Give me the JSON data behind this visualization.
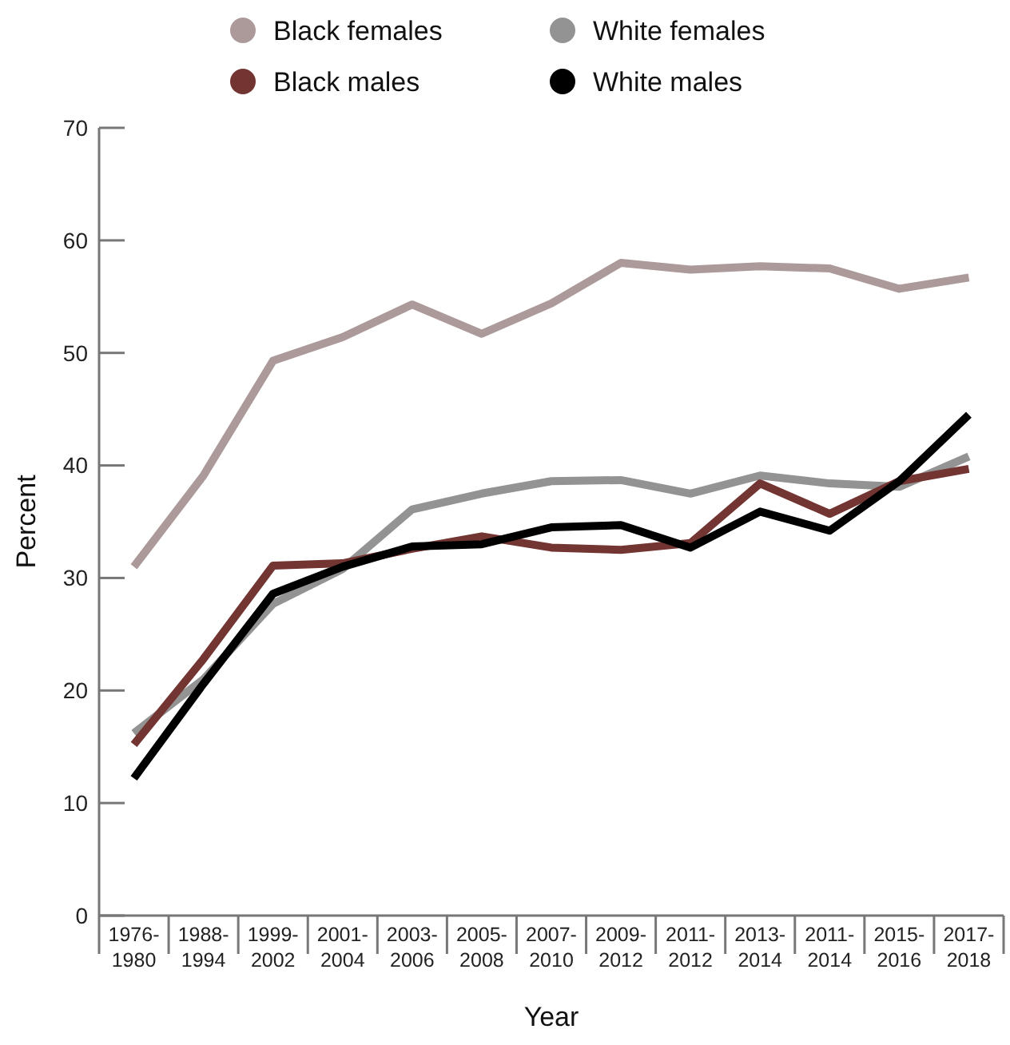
{
  "chart_data": {
    "type": "line",
    "xlabel": "Year",
    "ylabel": "Percent",
    "categories": [
      "1976-\n1980",
      "1988-\n1994",
      "1999-\n2002",
      "2001-\n2004",
      "2003-\n2006",
      "2005-\n2008",
      "2007-\n2010",
      "2009-\n2012",
      "2011-\n2012",
      "2013-\n2014",
      "2011-\n2014",
      "2015-\n2016",
      "2017-\n2018"
    ],
    "series": [
      {
        "name": "Black females",
        "color": "#ac9999",
        "values": [
          31.0,
          39.1,
          49.3,
          51.4,
          54.3,
          51.7,
          54.4,
          58.0,
          57.4,
          57.7,
          57.5,
          55.7,
          56.7
        ]
      },
      {
        "name": "White females",
        "color": "#939393",
        "values": [
          16.2,
          21.0,
          27.7,
          30.8,
          36.1,
          37.5,
          38.6,
          38.7,
          37.5,
          39.1,
          38.4,
          38.1,
          40.8
        ]
      },
      {
        "name": "Black males",
        "color": "#733532",
        "values": [
          15.2,
          22.8,
          31.1,
          31.3,
          32.6,
          33.7,
          32.7,
          32.5,
          33.1,
          38.4,
          35.7,
          38.6,
          39.7
        ]
      },
      {
        "name": "White males",
        "color": "#000000",
        "values": [
          12.2,
          20.6,
          28.6,
          31.0,
          32.8,
          33.0,
          34.5,
          34.7,
          32.7,
          35.9,
          34.2,
          38.6,
          44.5
        ]
      }
    ],
    "ylim": [
      0,
      70
    ],
    "yticks": [
      0,
      10,
      20,
      30,
      40,
      50,
      60,
      70
    ],
    "legend": "top",
    "grid": false,
    "marker": "none",
    "line_style": "solid"
  }
}
